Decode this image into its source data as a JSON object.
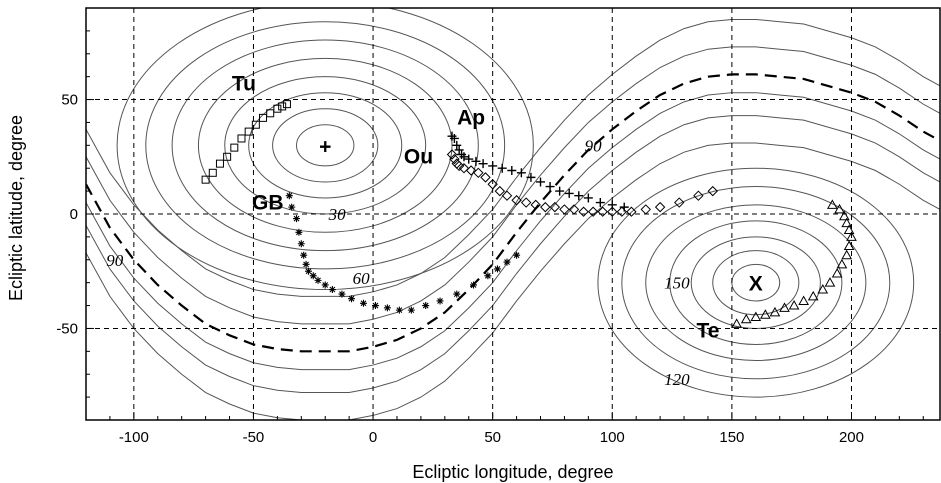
{
  "chart_data": {
    "type": "scatter",
    "title": "",
    "xlabel": "Ecliptic longitude, degree",
    "ylabel": "Ecliptic latitude, degree",
    "xlim": [
      -120,
      237
    ],
    "ylim": [
      -90,
      90
    ],
    "xticks": [
      -100,
      -50,
      0,
      50,
      100,
      150,
      200
    ],
    "yticks": [
      -50,
      0,
      50
    ],
    "grid": true,
    "centers": [
      {
        "label": "+",
        "x": -20,
        "y": 30
      },
      {
        "label": "X",
        "x": 160,
        "y": -30
      }
    ],
    "contour_labels": [
      {
        "text": "30",
        "x": -15,
        "y": 0
      },
      {
        "text": "60",
        "x": -5,
        "y": -28
      },
      {
        "text": "90",
        "x": -108,
        "y": -20
      },
      {
        "text": "90",
        "x": 92,
        "y": 30
      },
      {
        "text": "150",
        "x": 127,
        "y": -30
      },
      {
        "text": "120",
        "x": 127,
        "y": -72
      }
    ],
    "reference_curve": {
      "name": "90",
      "style": "dashed",
      "x": [
        -120,
        -110,
        -100,
        -90,
        -80,
        -70,
        -60,
        -50,
        -40,
        -30,
        -20,
        -10,
        0,
        10,
        20,
        30,
        40,
        50,
        60,
        70,
        80,
        90,
        100,
        110,
        120,
        130,
        140,
        150,
        160,
        170,
        180,
        190,
        200,
        210,
        220,
        230,
        237
      ],
      "y": [
        13,
        -6,
        -20,
        -31,
        -40,
        -48,
        -53,
        -57,
        -59,
        -60,
        -60,
        -60,
        -58,
        -55,
        -50,
        -43,
        -33,
        -22,
        -8,
        5,
        17,
        28,
        37,
        45,
        52,
        57,
        60,
        61,
        61,
        60,
        59,
        56,
        53,
        49,
        43,
        36,
        32
      ]
    },
    "series": [
      {
        "name": "Tu",
        "marker": "square",
        "x": [
          -70,
          -67,
          -64,
          -61,
          -58,
          -55,
          -52,
          -49,
          -46,
          -43,
          -40,
          -38,
          -36
        ],
        "y": [
          15,
          18,
          22,
          25,
          29,
          33,
          36,
          39,
          42,
          44,
          46,
          47,
          48
        ]
      },
      {
        "name": "GB",
        "marker": "asterisk",
        "x": [
          -35,
          -34,
          -32,
          -31,
          -30,
          -29,
          -28,
          -27,
          -25,
          -23,
          -20,
          -17,
          -13,
          -9,
          -4,
          1,
          6,
          11,
          16,
          22,
          28,
          35,
          42,
          48,
          52,
          56,
          60
        ],
        "y": [
          8,
          3,
          -2,
          -8,
          -13,
          -18,
          -22,
          -25,
          -27,
          -29,
          -31,
          -33,
          -35,
          -37,
          -39,
          -40,
          -41,
          -42,
          -42,
          -40,
          -38,
          -35,
          -31,
          -27,
          -24,
          -21,
          -18
        ]
      },
      {
        "name": "Ap",
        "marker": "plus",
        "x": [
          33,
          34,
          35,
          36,
          37,
          38,
          40,
          43,
          46,
          50,
          54,
          58,
          62,
          66,
          70,
          74,
          78,
          82,
          86,
          90,
          95,
          100,
          105
        ],
        "y": [
          34,
          33,
          30,
          28,
          26,
          25,
          24,
          23,
          22,
          21,
          20,
          19,
          18,
          16,
          14,
          12,
          10,
          9,
          8,
          7,
          5,
          4,
          3
        ]
      },
      {
        "name": "Ou",
        "marker": "diamond",
        "x": [
          33,
          34,
          35,
          36,
          38,
          41,
          44,
          47,
          50,
          53,
          56,
          60,
          64,
          68,
          72,
          76,
          80,
          84,
          88,
          92,
          96,
          100,
          104,
          108,
          114,
          120,
          128,
          136,
          142
        ],
        "y": [
          26,
          24,
          22,
          21,
          20,
          19,
          18,
          16,
          13,
          10,
          8,
          6,
          5,
          4,
          3,
          3,
          2,
          2,
          1,
          1,
          1,
          1,
          1,
          1,
          2,
          3,
          5,
          8,
          10
        ]
      },
      {
        "name": "Te",
        "marker": "triangle",
        "x": [
          152,
          156,
          160,
          164,
          168,
          172,
          176,
          180,
          184,
          188,
          191,
          194,
          196,
          198,
          199,
          200,
          199,
          198,
          197,
          195,
          192
        ],
        "y": [
          -48,
          -46,
          -45,
          -44,
          -43,
          -41,
          -40,
          -38,
          -36,
          -33,
          -30,
          -26,
          -22,
          -18,
          -14,
          -10,
          -7,
          -4,
          -1,
          2,
          4
        ]
      }
    ],
    "series_label_positions": [
      {
        "name": "Tu",
        "x": -54,
        "y": 54
      },
      {
        "name": "GB",
        "x": -44,
        "y": 2
      },
      {
        "name": "Ap",
        "x": 41,
        "y": 39
      },
      {
        "name": "Ou",
        "x": 19,
        "y": 22
      },
      {
        "name": "Te",
        "x": 140,
        "y": -54
      }
    ]
  }
}
